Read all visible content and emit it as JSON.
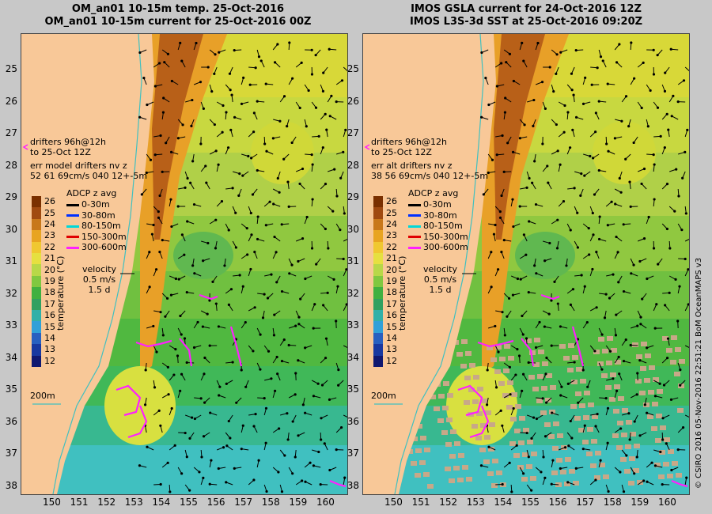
{
  "panels": [
    {
      "title1": "OM_an01 10-15m temp. 25-Oct-2016",
      "title2": "OM_an01 10-15m current for 25-Oct-2016 00Z",
      "drifter1": "drifters 96h@12h",
      "drifter2": "to 25-Oct 12Z",
      "err1": "err model drifters nv z",
      "err2": "52 61 69cm/s 040 12+-5m"
    },
    {
      "title1": "IMOS GSLA current for 24-Oct-2016 12Z",
      "title2": "IMOS L3S-3d SST at 25-Oct-2016 09:20Z",
      "drifter1": "drifters 96h@12h",
      "drifter2": "to 25-Oct 12Z",
      "err1": "err alt drifters nv z",
      "err2": "38 56 69cm/s 040 12+-5m"
    }
  ],
  "latitudes": [
    "25",
    "26",
    "27",
    "28",
    "29",
    "30",
    "31",
    "32",
    "33",
    "34",
    "35",
    "36",
    "37",
    "38"
  ],
  "longitudes": [
    "150",
    "151",
    "152",
    "153",
    "154",
    "155",
    "156",
    "157",
    "158",
    "159",
    "160"
  ],
  "colorbar": {
    "label": "temperature (°C)",
    "ticks": [
      "26",
      "25",
      "24",
      "23",
      "22",
      "21",
      "20",
      "19",
      "18",
      "17",
      "16",
      "15",
      "14",
      "13",
      "12"
    ],
    "colors": [
      "#7a3000",
      "#a04a10",
      "#c8781a",
      "#e8a420",
      "#f0c830",
      "#e6e040",
      "#b8d848",
      "#80c840",
      "#40b040",
      "#30a060",
      "#30b0a8",
      "#30a0d8",
      "#2860c0",
      "#1838a0",
      "#101870"
    ]
  },
  "adcp": {
    "title": "ADCP z avg",
    "items": [
      {
        "label": "0-30m",
        "color": "#000000"
      },
      {
        "label": "30-80m",
        "color": "#0030ff"
      },
      {
        "label": "80-150m",
        "color": "#00d8d8"
      },
      {
        "label": "150-300m",
        "color": "#e00000"
      },
      {
        "label": "300-600m",
        "color": "#ff20ff"
      }
    ]
  },
  "velocity": {
    "label": "velocity",
    "speed": "0.5 m/s",
    "time": "1.5 d"
  },
  "isobath": "200m",
  "colors": {
    "land": "#f8c898",
    "coast_line": "#40c0c0",
    "arrows": "#000000",
    "drifter": "#ff20ff"
  },
  "copyright": "© CSIRO 2016  05-Nov-2016 22:51:21 BoM OceanMAPS v3"
}
